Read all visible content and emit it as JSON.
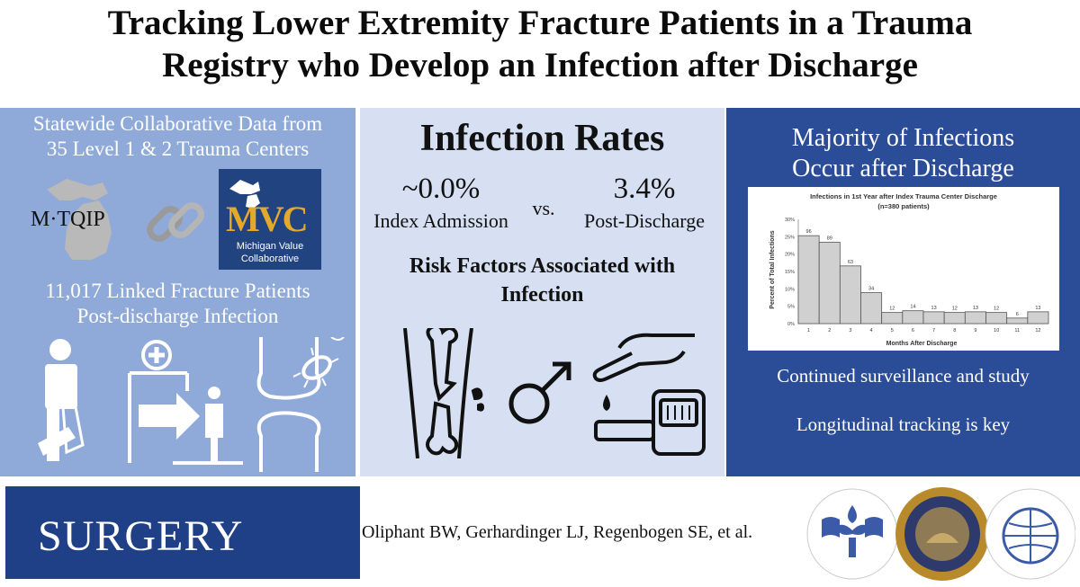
{
  "title": {
    "line1": "Tracking Lower Extremity Fracture Patients in a Trauma",
    "line2": "Registry who Develop an Infection after Discharge"
  },
  "left_panel": {
    "heading_line1": "Statewide Collaborative Data from",
    "heading_line2": "35 Level 1 & 2 Trauma Centers",
    "mtqip_logo": "M·TQIP",
    "mvc_logo": {
      "letters": "MVC",
      "line1": "Michigan Value",
      "line2": "Collaborative"
    },
    "linked_line1": "11,017 Linked Fracture Patients",
    "linked_line2": "Post-discharge Infection",
    "icons": [
      "person-with-leg-cast-icon",
      "hospital-discharge-icon",
      "knee-joint-bacteria-icon"
    ]
  },
  "middle_panel": {
    "heading": "Infection Rates",
    "index_value": "~0.0%",
    "index_label": "Index Admission",
    "vs": "vs.",
    "post_value": "3.4%",
    "post_label": "Post-Discharge",
    "risk_line1": "Risk Factors Associated with",
    "risk_line2": "Infection",
    "icons": [
      "open-fracture-icon",
      "male-symbol-icon",
      "glucose-meter-icon"
    ]
  },
  "right_panel": {
    "heading_line1": "Majority of Infections",
    "heading_line2": "Occur after Discharge",
    "note1": "Continued surveillance and study",
    "note2": "Longitudinal tracking is key"
  },
  "chart_data": {
    "type": "bar",
    "title": "Infections in 1st Year after Index Trauma Center Discharge",
    "subtitle": "(n=380 patients)",
    "xlabel": "Months After Discharge",
    "ylabel": "Percent of Total Infections",
    "categories": [
      "1",
      "2",
      "3",
      "4",
      "5",
      "6",
      "7",
      "8",
      "9",
      "10",
      "11",
      "12"
    ],
    "values": [
      25.3,
      23.4,
      16.6,
      8.9,
      3.2,
      3.7,
      3.4,
      3.2,
      3.4,
      3.2,
      1.6,
      3.4
    ],
    "bar_labels": [
      "96",
      "89",
      "63",
      "34",
      "12",
      "14",
      "13",
      "12",
      "13",
      "12",
      "6",
      "13"
    ],
    "yticks": [
      "0%",
      "5%",
      "10%",
      "15%",
      "20%",
      "25%",
      "30%"
    ],
    "ylim": [
      0,
      30
    ],
    "bar_color": "#d0d0d0",
    "grid": false
  },
  "footer": {
    "journal": "SURGERY",
    "authors": "Oliphant BW, Gerhardinger LJ, Regenbogen SE, et al.",
    "seals": [
      "society-of-university-surgeons-seal",
      "central-surgical-association-seal",
      "american-association-of-endocrine-surgeons-seal"
    ]
  },
  "colors": {
    "left_panel": "#8faad8",
    "middle_panel": "#d6e0f2",
    "right_panel": "#2b4c97",
    "surgery_banner": "#1f3f86"
  }
}
